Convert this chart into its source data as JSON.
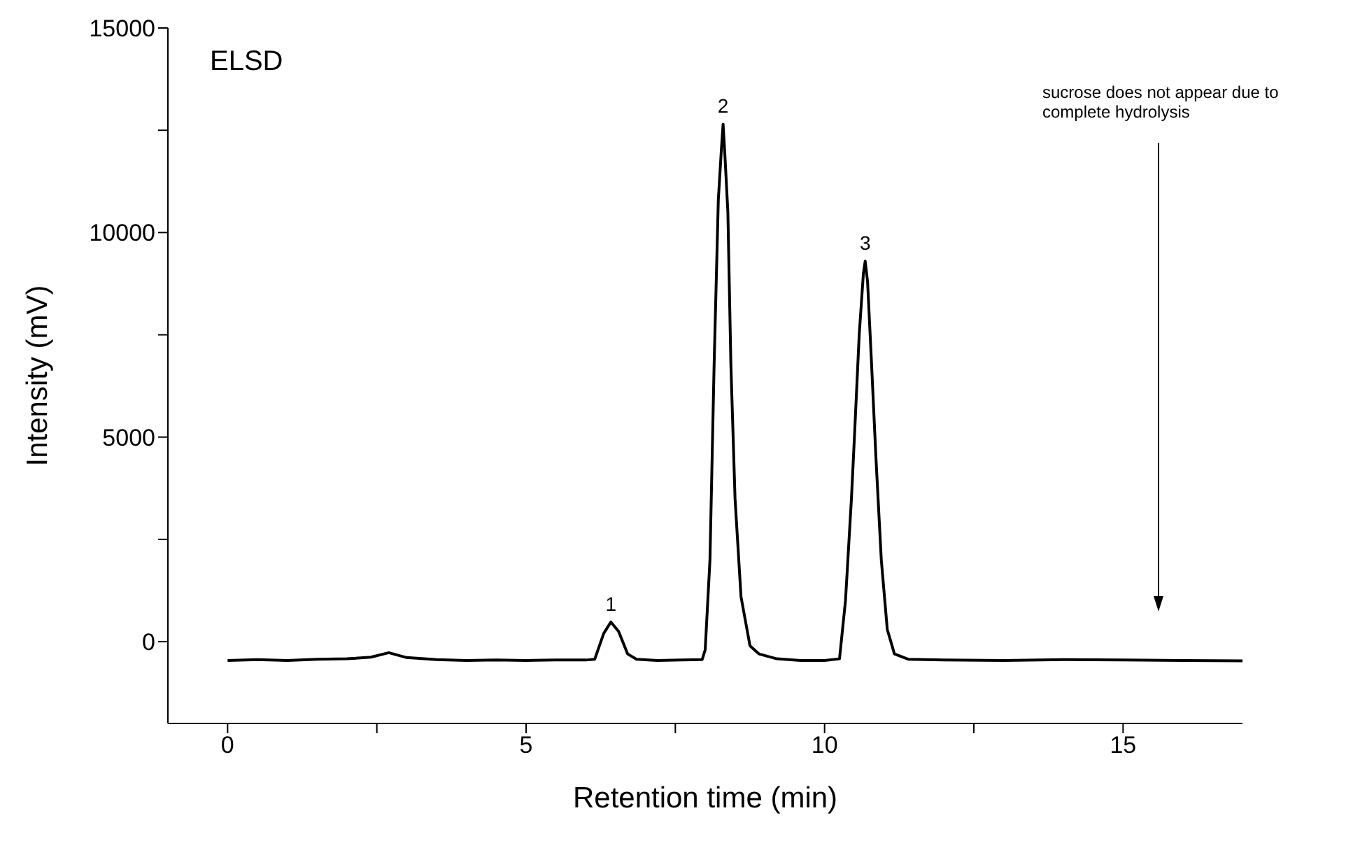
{
  "chart_data": {
    "type": "line",
    "xlabel": "Retention time (min)",
    "ylabel": "Intensity (mV)",
    "xlim": [
      -1,
      17
    ],
    "xticks": [
      0,
      {
        "value": 2.5,
        "label": null
      },
      5,
      {
        "value": 7.5,
        "label": null
      },
      10,
      {
        "value": 12.5,
        "label": null
      },
      15
    ],
    "ylim": [
      -2000,
      15000
    ],
    "yticks": [
      0,
      {
        "value": 2500,
        "label": null
      },
      5000,
      {
        "value": 7500,
        "label": null
      },
      10000,
      {
        "value": 12500,
        "label": null
      },
      15000
    ],
    "marker": "none",
    "line_style": "solid",
    "series": [
      {
        "color": "#000000",
        "x": [
          0,
          0.5,
          1,
          1.5,
          2,
          2.4,
          2.7,
          3.0,
          3.5,
          4,
          4.5,
          5,
          5.5,
          6.0,
          6.15,
          6.3,
          6.42,
          6.55,
          6.7,
          6.85,
          7.2,
          7.6,
          7.95,
          8.0,
          8.08,
          8.15,
          8.22,
          8.27,
          8.3,
          8.33,
          8.38,
          8.43,
          8.5,
          8.6,
          8.75,
          8.9,
          9.2,
          9.6,
          10.0,
          10.25,
          10.35,
          10.45,
          10.5,
          10.58,
          10.65,
          10.68,
          10.72,
          10.78,
          10.86,
          10.95,
          11.05,
          11.17,
          11.4,
          12,
          13,
          14,
          15,
          16,
          17
        ],
        "values": [
          -460,
          -440,
          -460,
          -430,
          -420,
          -380,
          -270,
          -390,
          -440,
          -460,
          -450,
          -460,
          -450,
          -450,
          -430,
          200,
          480,
          250,
          -300,
          -430,
          -460,
          -450,
          -440,
          -200,
          2000,
          6800,
          10800,
          12000,
          12650,
          11900,
          10500,
          6800,
          3500,
          1100,
          -100,
          -300,
          -420,
          -460,
          -460,
          -420,
          1000,
          3500,
          5000,
          7500,
          9000,
          9300,
          8800,
          7000,
          4500,
          2000,
          300,
          -300,
          -430,
          -450,
          -460,
          -440,
          -450,
          -460,
          -470
        ]
      }
    ],
    "annotations": [
      "ELSD",
      {
        "text": "1",
        "x": 6.42,
        "y": 480
      },
      {
        "text": "2",
        "x": 8.3,
        "y": 12650
      },
      {
        "text": "3",
        "x": 10.68,
        "y": 9300
      },
      "sucrose does not appear due to complete hydrolysis"
    ]
  }
}
